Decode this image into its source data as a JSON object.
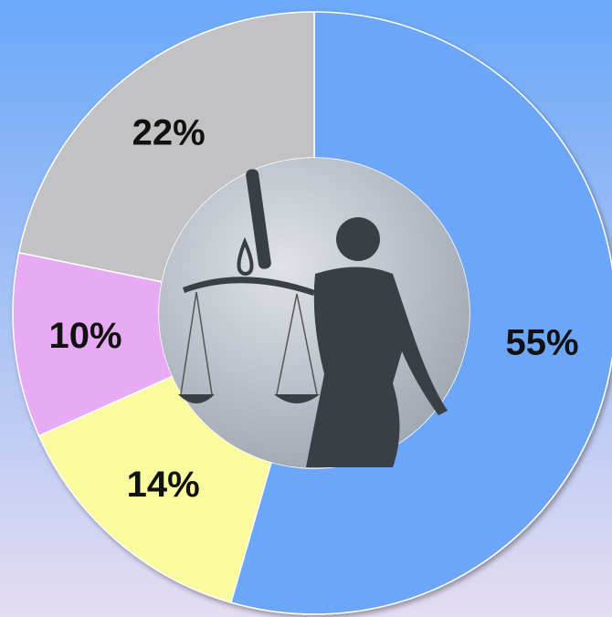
{
  "chart_data": {
    "type": "donut",
    "values": [
      55,
      14,
      10,
      22
    ],
    "value_labels": [
      "55%",
      "14%",
      "10%",
      "22%"
    ],
    "colors": [
      "#6ea6f7",
      "#fafa9e",
      "#e8aaf4",
      "#c2c2c4"
    ]
  }
}
